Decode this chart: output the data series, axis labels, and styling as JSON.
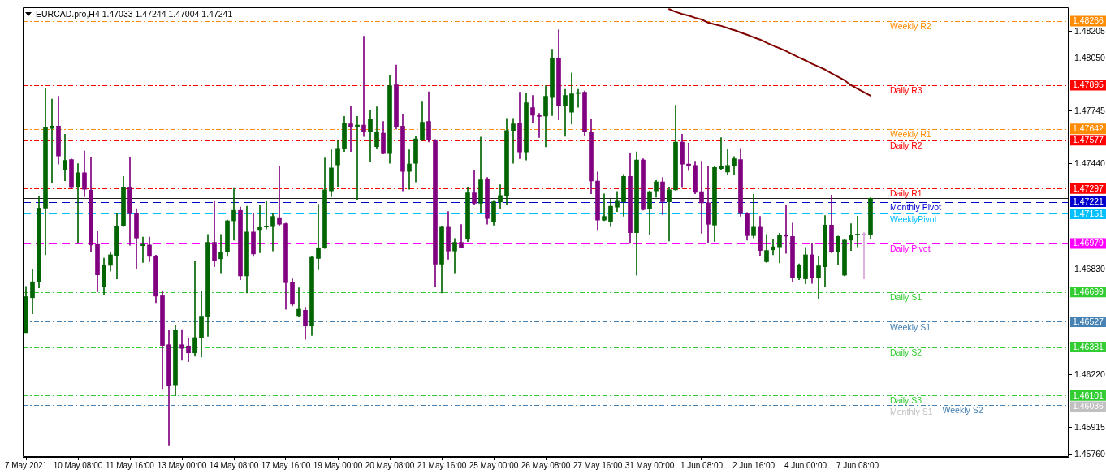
{
  "chart_data": {
    "type": "candlestick",
    "title": "EURCAD.pro,H4 1.47033 1.47244 1.47004 1.47241",
    "categories": [
      "7 May 2021",
      null,
      null,
      null,
      null,
      null,
      null,
      null,
      "10 May 08:00",
      null,
      null,
      null,
      null,
      null,
      null,
      null,
      "11 May 16:00",
      null,
      null,
      null,
      null,
      null,
      null,
      null,
      "13 May 00:00",
      null,
      null,
      null,
      null,
      null,
      null,
      null,
      "14 May 08:00",
      null,
      null,
      null,
      null,
      null,
      null,
      null,
      "17 May 16:00",
      null,
      null,
      null,
      null,
      null,
      null,
      null,
      "19 May 00:00",
      null,
      null,
      null,
      null,
      null,
      null,
      null,
      "20 May 08:00",
      null,
      null,
      null,
      null,
      null,
      null,
      null,
      "21 May 16:00",
      null,
      null,
      null,
      null,
      null,
      null,
      null,
      "25 May 00:00",
      null,
      null,
      null,
      null,
      null,
      null,
      null,
      "26 May 08:00",
      null,
      null,
      null,
      null,
      null,
      null,
      null,
      "27 May 16:00",
      null,
      null,
      null,
      null,
      null,
      null,
      null,
      "31 May 00:00",
      null,
      null,
      null,
      null,
      null,
      null,
      null,
      "1 Jun 08:00",
      null,
      null,
      null,
      null,
      null,
      null,
      null,
      "2 Jun 16:00",
      null,
      null,
      null,
      null,
      null,
      null,
      null,
      "4 Jun 00:00",
      null,
      null,
      null,
      null,
      null,
      null,
      null,
      "7 Jun 08:00",
      null,
      null,
      null,
      null,
      null,
      null,
      null,
      null,
      null,
      null,
      null,
      null,
      null,
      null,
      null,
      null,
      null,
      null,
      null,
      null,
      null,
      null,
      null,
      null,
      null,
      null,
      null,
      null,
      null,
      null,
      null,
      null
    ],
    "ohlc": [
      [
        1.46464,
        1.46732,
        1.46464,
        1.46672
      ],
      [
        1.46666,
        1.46833,
        1.46573,
        1.46758
      ],
      [
        1.46758,
        1.47255,
        1.46723,
        1.47184
      ],
      [
        1.47184,
        1.47876,
        1.46914,
        1.4765
      ],
      [
        1.47645,
        1.47815,
        1.47332,
        1.47659
      ],
      [
        1.47659,
        1.47831,
        1.47439,
        1.47486
      ],
      [
        1.47408,
        1.47612,
        1.47343,
        1.4746
      ],
      [
        1.47465,
        1.47469,
        1.47298,
        1.47302
      ],
      [
        1.47305,
        1.47441,
        1.4698,
        1.47389
      ],
      [
        1.47389,
        1.47514,
        1.4725,
        1.47293
      ],
      [
        1.47288,
        1.47477,
        1.46929,
        1.46971
      ],
      [
        1.46974,
        1.47048,
        1.46701,
        1.46798
      ],
      [
        1.46732,
        1.46895,
        1.46684,
        1.46853
      ],
      [
        1.46853,
        1.46929,
        1.46819,
        1.46914
      ],
      [
        1.4691,
        1.47153,
        1.46775,
        1.4708
      ],
      [
        1.4708,
        1.47367,
        1.47077,
        1.47307
      ],
      [
        1.47307,
        1.47477,
        1.46969,
        1.47152
      ],
      [
        1.47155,
        1.47181,
        1.46836,
        1.47011
      ],
      [
        1.46967,
        1.47017,
        1.4687,
        1.46974
      ],
      [
        1.46971,
        1.47017,
        1.46874,
        1.46905
      ],
      [
        1.46908,
        1.46912,
        1.46637,
        1.46675
      ],
      [
        1.46677,
        1.46701,
        1.4614,
        1.4639
      ],
      [
        1.46394,
        1.46476,
        1.45814,
        1.46159
      ],
      [
        1.46162,
        1.46507,
        1.46099,
        1.46476
      ],
      [
        1.46394,
        1.46481,
        1.46304,
        1.46373
      ],
      [
        1.46387,
        1.4643,
        1.46296,
        1.46347
      ],
      [
        1.46347,
        1.46876,
        1.46327,
        1.46435
      ],
      [
        1.46435,
        1.46701,
        1.46323,
        1.46559
      ],
      [
        1.46559,
        1.47032,
        1.46442,
        1.46986
      ],
      [
        1.46986,
        1.47222,
        1.46845,
        1.46879
      ],
      [
        1.46891,
        1.47032,
        1.4681,
        1.46931
      ],
      [
        1.46931,
        1.47115,
        1.46905,
        1.47111
      ],
      [
        1.47111,
        1.47298,
        1.46999,
        1.47171
      ],
      [
        1.47171,
        1.4719,
        1.4677,
        1.46792
      ],
      [
        1.46792,
        1.47195,
        1.46694,
        1.47046
      ],
      [
        1.47046,
        1.47155,
        1.46905,
        1.46919
      ],
      [
        1.4706,
        1.47202,
        1.46926,
        1.47072
      ],
      [
        1.47075,
        1.47222,
        1.47063,
        1.4708
      ],
      [
        1.47077,
        1.47153,
        1.46936,
        1.47136
      ],
      [
        1.47129,
        1.47427,
        1.4708,
        1.47091
      ],
      [
        1.47094,
        1.47098,
        1.46599,
        1.46753
      ],
      [
        1.46756,
        1.46775,
        1.46618,
        1.46628
      ],
      [
        1.46562,
        1.46723,
        1.46559,
        1.46599
      ],
      [
        1.46593,
        1.46611,
        1.46425,
        1.46502
      ],
      [
        1.46502,
        1.46905,
        1.46447,
        1.469
      ],
      [
        1.46893,
        1.47207,
        1.46827,
        1.46955
      ],
      [
        1.46953,
        1.47474,
        1.4695,
        1.4729
      ],
      [
        1.47284,
        1.47521,
        1.4725,
        1.47417
      ],
      [
        1.47434,
        1.47578,
        1.4731,
        1.47529
      ],
      [
        1.47526,
        1.47715,
        1.47512,
        1.47677
      ],
      [
        1.47672,
        1.47774,
        1.47512,
        1.47652
      ],
      [
        1.47654,
        1.47715,
        1.47233,
        1.47664
      ],
      [
        1.47664,
        1.48178,
        1.47598,
        1.47624
      ],
      [
        1.47624,
        1.47753,
        1.47453,
        1.47696
      ],
      [
        1.4754,
        1.4777,
        1.47529,
        1.47621
      ],
      [
        1.47617,
        1.47686,
        1.47497,
        1.475
      ],
      [
        1.475,
        1.4795,
        1.47443,
        1.47892
      ],
      [
        1.47897,
        1.48012,
        1.47642,
        1.47655
      ],
      [
        1.47659,
        1.47727,
        1.47284,
        1.47396
      ],
      [
        1.47396,
        1.47521,
        1.47293,
        1.47439
      ],
      [
        1.47443,
        1.47598,
        1.47336,
        1.47585
      ],
      [
        1.47578,
        1.47798,
        1.47574,
        1.47681
      ],
      [
        1.47686,
        1.47857,
        1.47567,
        1.47578
      ],
      [
        1.47578,
        1.47581,
        1.46727,
        1.4686
      ],
      [
        1.4686,
        1.47077,
        1.46694,
        1.47074
      ],
      [
        1.47074,
        1.47164,
        1.46888,
        1.46936
      ],
      [
        1.46936,
        1.47008,
        1.4681,
        1.46986
      ],
      [
        1.46986,
        1.47089,
        1.46957,
        1.46957
      ],
      [
        1.47005,
        1.47302,
        1.46991,
        1.47272
      ],
      [
        1.47272,
        1.47405,
        1.47202,
        1.47212
      ],
      [
        1.47212,
        1.47595,
        1.47155,
        1.47348
      ],
      [
        1.4735,
        1.47362,
        1.47091,
        1.47124
      ],
      [
        1.47106,
        1.47224,
        1.47086,
        1.47221
      ],
      [
        1.47219,
        1.47319,
        1.47181,
        1.47257
      ],
      [
        1.47257,
        1.47703,
        1.47203,
        1.47633
      ],
      [
        1.47629,
        1.47703,
        1.47443,
        1.47672
      ],
      [
        1.47677,
        1.47854,
        1.4747,
        1.47509
      ],
      [
        1.47509,
        1.47849,
        1.47462,
        1.47793
      ],
      [
        1.47765,
        1.47836,
        1.47681,
        1.47722
      ],
      [
        1.4772,
        1.47732,
        1.47592,
        1.47715
      ],
      [
        1.47717,
        1.47892,
        1.47538,
        1.47831
      ],
      [
        1.47824,
        1.48103,
        1.47719,
        1.48052
      ],
      [
        1.48052,
        1.48216,
        1.47695,
        1.47776
      ],
      [
        1.47776,
        1.47871,
        1.476,
        1.47836
      ],
      [
        1.47739,
        1.47966,
        1.4767,
        1.47845
      ],
      [
        1.47847,
        1.47871,
        1.47767,
        1.4785
      ],
      [
        1.47855,
        1.47862,
        1.47602,
        1.47624
      ],
      [
        1.47621,
        1.47698,
        1.47267,
        1.47341
      ],
      [
        1.47341,
        1.47393,
        1.4706,
        1.47115
      ],
      [
        1.47115,
        1.47267,
        1.47111,
        1.47136
      ],
      [
        1.47108,
        1.47236,
        1.47077,
        1.47195
      ],
      [
        1.4719,
        1.47281,
        1.47164,
        1.47224
      ],
      [
        1.47221,
        1.47379,
        1.47137,
        1.47367
      ],
      [
        1.47367,
        1.47504,
        1.4698,
        1.47042
      ],
      [
        1.47042,
        1.47509,
        1.46796,
        1.47462
      ],
      [
        1.47463,
        1.4747,
        1.47172,
        1.47176
      ],
      [
        1.47178,
        1.47284,
        1.4703,
        1.47279
      ],
      [
        1.47284,
        1.47344,
        1.47247,
        1.47336
      ],
      [
        1.47336,
        1.47362,
        1.47146,
        1.47222
      ],
      [
        1.47221,
        1.47302,
        1.46994,
        1.4729
      ],
      [
        1.4729,
        1.47779,
        1.47288,
        1.47566
      ],
      [
        1.47566,
        1.47612,
        1.47302,
        1.47439
      ],
      [
        1.47439,
        1.4756,
        1.47401,
        1.47427
      ],
      [
        1.47431,
        1.47456,
        1.47267,
        1.47276
      ],
      [
        1.47279,
        1.47456,
        1.47039,
        1.47215
      ],
      [
        1.47215,
        1.47425,
        1.46982,
        1.47091
      ],
      [
        1.47086,
        1.47425,
        1.46991,
        1.47419
      ],
      [
        1.47413,
        1.47592,
        1.47408,
        1.47427
      ],
      [
        1.47393,
        1.47523,
        1.47375,
        1.47431
      ],
      [
        1.47431,
        1.47482,
        1.47375,
        1.4747
      ],
      [
        1.47465,
        1.47529,
        1.47137,
        1.47152
      ],
      [
        1.47155,
        1.47159,
        1.46999,
        1.47025
      ],
      [
        1.47025,
        1.47264,
        1.47011,
        1.47074
      ],
      [
        1.47074,
        1.47136,
        1.46908,
        1.46939
      ],
      [
        1.46874,
        1.47032,
        1.4687,
        1.46939
      ],
      [
        1.46943,
        1.47003,
        1.46914,
        1.4696
      ],
      [
        1.4696,
        1.47039,
        1.46867,
        1.47025
      ],
      [
        1.47025,
        1.47203,
        1.46922,
        1.47022
      ],
      [
        1.4702,
        1.47098,
        1.46758,
        1.46784
      ],
      [
        1.46784,
        1.46862,
        1.4677,
        1.46853
      ],
      [
        1.46775,
        1.46957,
        1.46746,
        1.46914
      ],
      [
        1.46914,
        1.4698,
        1.46749,
        1.46784
      ],
      [
        1.46784,
        1.46905,
        1.4666,
        1.4685
      ],
      [
        1.46845,
        1.47141,
        1.46729,
        1.47086
      ],
      [
        1.47086,
        1.47259,
        1.46926,
        1.46931
      ],
      [
        1.46931,
        1.47023,
        1.46857,
        1.4702
      ],
      [
        1.46796,
        1.47003,
        1.46792,
        1.46999
      ],
      [
        1.46999,
        1.47094,
        1.46939,
        1.47029
      ],
      [
        1.47029,
        1.47137,
        1.4696,
        1.47032
      ],
      [
        1.47034,
        1.47042,
        1.46775,
        1.47032
      ],
      [
        1.47033,
        1.47244,
        1.47004,
        1.47241
      ],
      null,
      null,
      null,
      null,
      null,
      null,
      null,
      null,
      null,
      null,
      null,
      null,
      null,
      null,
      null,
      null,
      null,
      null,
      null,
      null,
      null,
      null,
      null,
      null,
      null,
      null,
      null,
      null,
      null,
      null
    ],
    "colors": [
      "#006400",
      "#006400",
      "#006400",
      "#006400",
      "#006400",
      "#800080",
      "#006400",
      "#800080",
      "#006400",
      "#800080",
      "#800080",
      "#800080",
      "#006400",
      "#006400",
      "#006400",
      "#006400",
      "#800080",
      "#800080",
      "#006400",
      "#800080",
      "#800080",
      "#800080",
      "#800080",
      "#006400",
      "#800080",
      "#800080",
      "#006400",
      "#006400",
      "#006400",
      "#800080",
      "#006400",
      "#006400",
      "#006400",
      "#800080",
      "#006400",
      "#800080",
      "#006400",
      "#006400",
      "#006400",
      "#800080",
      "#800080",
      "#800080",
      "#006400",
      "#800080",
      "#006400",
      "#006400",
      "#006400",
      "#006400",
      "#006400",
      "#006400",
      "#800080",
      "#006400",
      "#800080",
      "#006400",
      "#006400",
      "#800080",
      "#006400",
      "#800080",
      "#800080",
      "#006400",
      "#006400",
      "#006400",
      "#800080",
      "#800080",
      "#006400",
      "#800080",
      "#006400",
      "#800080",
      "#006400",
      "#800080",
      "#006400",
      "#800080",
      "#006400",
      "#006400",
      "#006400",
      "#006400",
      "#800080",
      "#006400",
      "#800080",
      "#800080",
      "#006400",
      "#006400",
      "#800080",
      "#006400",
      "#006400",
      "#006400",
      "#800080",
      "#800080",
      "#800080",
      "#006400",
      "#006400",
      "#006400",
      "#006400",
      "#800080",
      "#006400",
      "#800080",
      "#006400",
      "#006400",
      "#800080",
      "#006400",
      "#006400",
      "#800080",
      "#800080",
      "#800080",
      "#800080",
      "#800080",
      "#006400",
      "#006400",
      "#006400",
      "#006400",
      "#800080",
      "#800080",
      "#006400",
      "#800080",
      "#006400",
      "#006400",
      "#006400",
      "#800080",
      "#800080",
      "#006400",
      "#006400",
      "#800080",
      "#006400",
      "#006400",
      "#800080",
      "#006400",
      "#006400",
      "#006400",
      "#006400",
      "#d8a0d8",
      "#006400",
      null,
      null,
      null,
      null,
      null,
      null,
      null,
      null,
      null,
      null,
      null,
      null,
      null,
      null,
      null,
      null,
      null,
      null,
      null,
      null,
      null,
      null,
      null,
      null,
      null,
      null,
      null,
      null,
      null,
      null
    ],
    "series": [
      {
        "type": "line",
        "color": "#800000",
        "line_style": "solid",
        "values": [
          null,
          null,
          null,
          null,
          null,
          null,
          null,
          null,
          null,
          null,
          null,
          null,
          null,
          null,
          null,
          null,
          null,
          null,
          null,
          null,
          null,
          null,
          null,
          null,
          null,
          null,
          null,
          null,
          null,
          null,
          null,
          null,
          null,
          null,
          null,
          null,
          null,
          null,
          null,
          null,
          null,
          null,
          null,
          null,
          null,
          null,
          null,
          null,
          null,
          null,
          null,
          null,
          null,
          null,
          null,
          null,
          null,
          null,
          null,
          null,
          null,
          null,
          null,
          null,
          null,
          null,
          null,
          null,
          null,
          null,
          null,
          null,
          null,
          null,
          null,
          null,
          null,
          null,
          null,
          null,
          null,
          null,
          null,
          null,
          null,
          null,
          null,
          null,
          null,
          null,
          null,
          null,
          null,
          null,
          null,
          null,
          null,
          null,
          null,
          1.48335,
          1.48319,
          1.48307,
          1.48297,
          1.48285,
          1.48275,
          1.48257,
          1.48247,
          1.48238,
          1.48226,
          1.48214,
          1.482,
          1.48187,
          1.48172,
          1.48159,
          1.48141,
          1.48124,
          1.48109,
          1.48093,
          1.48074,
          1.48055,
          1.48038,
          1.48019,
          1.48002,
          1.47985,
          1.47964,
          1.47943,
          1.47923,
          1.47895,
          1.47874,
          1.47854,
          1.47834,
          null,
          null,
          null,
          null,
          null,
          null,
          null,
          null,
          null,
          null,
          null,
          null,
          null,
          null,
          null,
          null,
          null,
          null,
          null,
          null,
          null,
          null,
          null,
          null,
          null,
          null,
          null,
          null,
          null,
          null
        ]
      }
    ],
    "ylim": [
      1.45745,
      1.48344
    ],
    "yticks": [
      1.48205,
      {
        "value": 1.4805,
        "label": "1.48050"
      },
      1.47745,
      {
        "value": 1.4744,
        "label": "1.47440"
      },
      {
        "value": 1.4683,
        "label": "1.46830"
      },
      {
        "value": 1.4622,
        "label": "1.46220"
      },
      1.45915,
      {
        "value": 1.4576,
        "label": "1.45760"
      }
    ],
    "ref_lines": [
      {
        "axis": "y",
        "value": 1.48266,
        "label": "Weekly R2",
        "color": "#ff8c00",
        "line_style": "dotted"
      },
      {
        "axis": "y",
        "value": 1.47895,
        "label": "Daily R3",
        "color": "#ff0000",
        "line_style": "dotted"
      },
      {
        "axis": "y",
        "value": 1.47642,
        "label": "Weekly R1",
        "color": "#ff8c00",
        "line_style": "dotted"
      },
      {
        "axis": "y",
        "value": 1.47577,
        "label": "Daily R2",
        "color": "#ff0000",
        "line_style": "dotted"
      },
      {
        "axis": "y",
        "value": 1.47297,
        "label": "Daily R1",
        "color": "#ff0000",
        "line_style": "dotted"
      },
      {
        "axis": "y",
        "value": 1.47221,
        "label": "Monthly Pivot",
        "color": "#0000cd",
        "line_style": "dashed"
      },
      {
        "axis": "y",
        "value": 1.47151,
        "label": "WeeklyPivot",
        "color": "#00bfff",
        "line_style": "dashed"
      },
      {
        "axis": "y",
        "value": 1.46979,
        "label": "Daily Pivot",
        "color": "#ff00ff",
        "line_style": "dashed"
      },
      {
        "axis": "y",
        "value": 1.46699,
        "label": "Daily S1",
        "color": "#32cd32",
        "line_style": "dotted"
      },
      {
        "axis": "y",
        "value": 1.46527,
        "label": "Weekly S1",
        "color": "#4682b4",
        "line_style": "dotted"
      },
      {
        "axis": "y",
        "value": 1.46381,
        "label": "Daily S2",
        "color": "#32cd32",
        "line_style": "dotted"
      },
      {
        "axis": "y",
        "value": 1.46101,
        "label": "Daily S3",
        "color": "#32cd32",
        "line_style": "dotted"
      },
      {
        "axis": "y",
        "value": 1.46036,
        "label": "Monthly S1",
        "color": "#c0c0c0",
        "line_style": "dotted"
      },
      {
        "axis": "y",
        "value": 1.46046,
        "label": "Weekly S2",
        "color": "#4682b4",
        "line_style": "dotted"
      },
      {
        "axis": "y",
        "value": 1.47241,
        "color": "#202020",
        "line_style": "solid"
      }
    ],
    "annotations": [
      "1.48266",
      "1.47895",
      "1.47642",
      "1.47577",
      "1.47297",
      "1.47221",
      "1.47151",
      "1.46979",
      "1.46699",
      "1.46527",
      "1.46381",
      "1.46101",
      "1.46036"
    ],
    "legend": false,
    "marker": "none"
  }
}
